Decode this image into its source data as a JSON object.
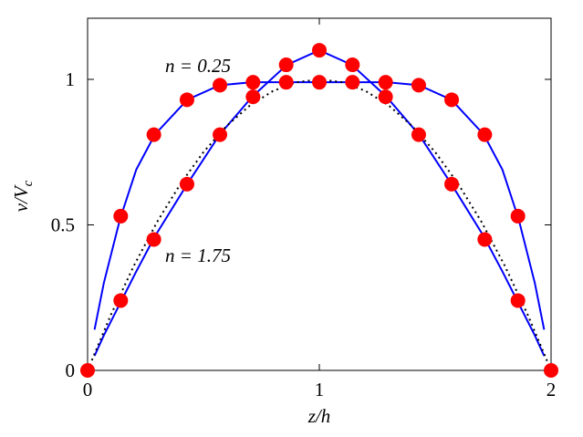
{
  "chart_data": {
    "type": "line",
    "xlabel": "z/h",
    "ylabel": {
      "main": "v/V",
      "sub": "c"
    },
    "annotations": [
      "n = 0.25",
      "n = 1.75"
    ],
    "xlim": [
      0,
      2
    ],
    "ylim": [
      0,
      1.21
    ],
    "xticks": [
      0,
      1,
      2
    ],
    "yticks": [
      0,
      0.5,
      1
    ],
    "grid": false,
    "series": [
      {
        "kind": "line",
        "line_style": "solid",
        "color": "#0000ff",
        "x": [
          0.03,
          0.07,
          0.14,
          0.21,
          0.29,
          0.43,
          0.57,
          0.71,
          0.86,
          1.0,
          1.14,
          1.29,
          1.43,
          1.57,
          1.71,
          1.79,
          1.86,
          1.93,
          1.97
        ],
        "values": [
          0.14,
          0.3,
          0.52,
          0.69,
          0.81,
          0.93,
          0.98,
          0.99,
          0.99,
          0.99,
          0.99,
          0.99,
          0.98,
          0.93,
          0.81,
          0.69,
          0.52,
          0.3,
          0.14
        ]
      },
      {
        "kind": "line",
        "line_style": "solid",
        "color": "#0000ff",
        "x": [
          0.03,
          0.07,
          0.14,
          0.21,
          0.29,
          0.43,
          0.57,
          0.71,
          0.86,
          1.0,
          1.14,
          1.29,
          1.43,
          1.57,
          1.71,
          1.79,
          1.86,
          1.93,
          1.97
        ],
        "values": [
          0.05,
          0.12,
          0.23,
          0.34,
          0.46,
          0.64,
          0.81,
          0.94,
          1.05,
          1.1,
          1.05,
          0.94,
          0.81,
          0.64,
          0.46,
          0.34,
          0.23,
          0.12,
          0.05
        ]
      },
      {
        "kind": "line",
        "line_style": "dotted",
        "color": "#000000",
        "x": [
          0,
          0.1,
          0.2,
          0.3,
          0.4,
          0.5,
          0.6,
          0.7,
          0.8,
          0.9,
          1.0,
          1.1,
          1.2,
          1.3,
          1.4,
          1.5,
          1.6,
          1.7,
          1.8,
          1.9,
          2.0
        ],
        "values": [
          0,
          0.19,
          0.36,
          0.51,
          0.64,
          0.75,
          0.84,
          0.91,
          0.96,
          0.99,
          1.0,
          0.99,
          0.96,
          0.91,
          0.84,
          0.75,
          0.64,
          0.51,
          0.36,
          0.19,
          0
        ]
      },
      {
        "kind": "markers",
        "color": "#ff0000",
        "x": [
          0.143,
          0.286,
          0.429,
          0.571,
          0.714,
          0.857,
          1.0,
          1.143,
          1.286,
          1.429,
          1.571,
          1.714,
          1.857
        ],
        "values": [
          0.53,
          0.81,
          0.93,
          0.98,
          0.99,
          0.99,
          0.99,
          0.99,
          0.99,
          0.98,
          0.93,
          0.81,
          0.53
        ]
      },
      {
        "kind": "markers",
        "color": "#ff0000",
        "x": [
          0,
          0.143,
          0.286,
          0.429,
          0.571,
          0.714,
          0.857,
          1.0,
          1.143,
          1.286,
          1.429,
          1.571,
          1.714,
          1.857,
          2
        ],
        "values": [
          0,
          0.24,
          0.45,
          0.64,
          0.81,
          0.94,
          1.05,
          1.1,
          1.05,
          0.94,
          0.81,
          0.64,
          0.45,
          0.24,
          0
        ]
      }
    ]
  }
}
